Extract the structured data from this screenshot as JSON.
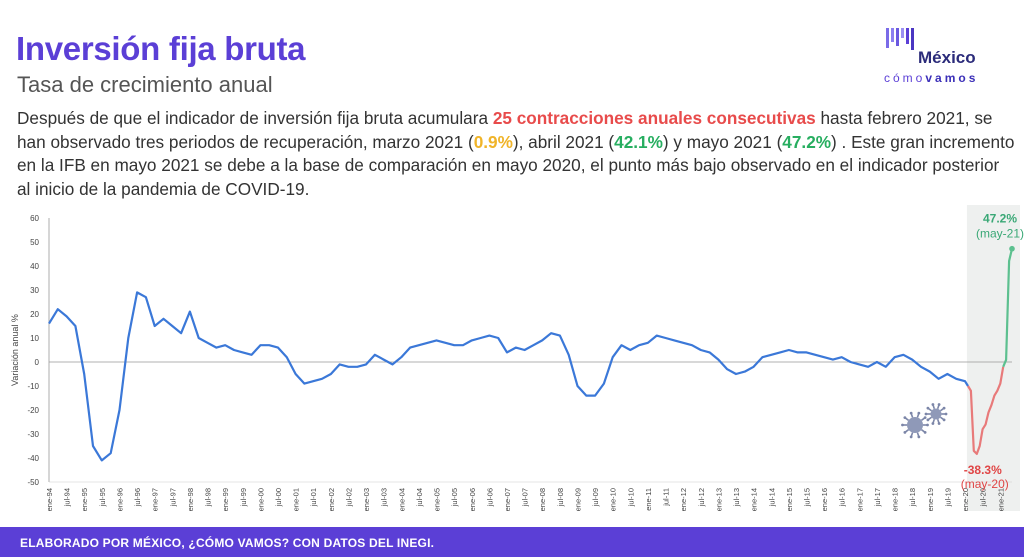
{
  "header": {
    "title": "Inversión fija bruta",
    "subtitle": "Tasa de crecimiento anual"
  },
  "description": {
    "part1": "Después de que el indicador de inversión fija bruta acumulara ",
    "highlight_contractions": "25 contracciones anuales consecutivas",
    "part2": " hasta febrero 2021, se han observado tres periodos de recuperación, marzo 2021 (",
    "val_march": "0.9%",
    "part3": "), abril 2021 (",
    "val_april": "42.1%",
    "part4": ") y mayo 2021 (",
    "val_may": "47.2%",
    "part5": ") . Este gran incremento en la IFB en mayo 2021 se debe a la base de comparación en mayo 2020, el punto más bajo observado en el indicador posterior al inicio de la pandemia de COVID-19."
  },
  "logo": {
    "name": "México",
    "tagline_light": "cómo",
    "tagline_bold": "vamos"
  },
  "footer": {
    "text": "ELABORADO POR MÉXICO, ¿CÓMO VAMOS? CON DATOS DEL INEGI."
  },
  "colors": {
    "title": "#5b3fd6",
    "line_main": "#3b78d8",
    "line_drop": "#e87a7a",
    "line_recovery": "#5cc08f",
    "highlight_red": "#e84b4b",
    "highlight_yellow": "#f0b429",
    "highlight_green": "#27ae60",
    "footer_bg": "#5b3fd6"
  },
  "chart_data": {
    "type": "line",
    "ylabel": "Variación anual %",
    "ylim": [
      -50,
      60
    ],
    "yticks": [
      -50,
      -40,
      -30,
      -20,
      -10,
      0,
      10,
      20,
      30,
      40,
      50,
      60
    ],
    "grid": false,
    "x_start": "ene-94",
    "x_end": "may-21",
    "xtick_labels": [
      "ene-94",
      "jul-94",
      "ene-95",
      "jul-95",
      "ene-96",
      "jul-96",
      "ene-97",
      "jul-97",
      "ene-98",
      "jul-98",
      "ene-99",
      "jul-99",
      "ene-00",
      "jul-00",
      "ene-01",
      "jul-01",
      "ene-02",
      "jul-02",
      "ene-03",
      "jul-03",
      "ene-04",
      "jul-04",
      "ene-05",
      "jul-05",
      "ene-06",
      "jul-06",
      "ene-07",
      "jul-07",
      "ene-08",
      "jul-08",
      "ene-09",
      "jul-09",
      "ene-10",
      "jul-10",
      "ene-11",
      "jul-11",
      "ene-12",
      "jul-12",
      "ene-13",
      "jul-13",
      "ene-14",
      "jul-14",
      "ene-15",
      "jul-15",
      "ene-16",
      "jul-16",
      "ene-17",
      "jul-17",
      "ene-18",
      "jul-18",
      "ene-19",
      "jul-19",
      "ene-20",
      "jul-20",
      "ene-21"
    ],
    "series": [
      {
        "segment": "pre-pandemic",
        "points": [
          [
            "ene-94",
            16
          ],
          [
            "abr-94",
            22
          ],
          [
            "jul-94",
            19
          ],
          [
            "oct-94",
            15
          ],
          [
            "ene-95",
            -5
          ],
          [
            "abr-95",
            -35
          ],
          [
            "jul-95",
            -41
          ],
          [
            "oct-95",
            -38
          ],
          [
            "ene-96",
            -20
          ],
          [
            "abr-96",
            10
          ],
          [
            "jul-96",
            29
          ],
          [
            "oct-96",
            27
          ],
          [
            "ene-97",
            15
          ],
          [
            "abr-97",
            18
          ],
          [
            "jul-97",
            15
          ],
          [
            "oct-97",
            12
          ],
          [
            "ene-98",
            21
          ],
          [
            "abr-98",
            10
          ],
          [
            "jul-98",
            8
          ],
          [
            "oct-98",
            6
          ],
          [
            "ene-99",
            7
          ],
          [
            "abr-99",
            5
          ],
          [
            "jul-99",
            4
          ],
          [
            "oct-99",
            3
          ],
          [
            "ene-00",
            7
          ],
          [
            "abr-00",
            7
          ],
          [
            "jul-00",
            6
          ],
          [
            "oct-00",
            2
          ],
          [
            "ene-01",
            -5
          ],
          [
            "abr-01",
            -9
          ],
          [
            "jul-01",
            -8
          ],
          [
            "oct-01",
            -7
          ],
          [
            "ene-02",
            -5
          ],
          [
            "abr-02",
            -1
          ],
          [
            "jul-02",
            -2
          ],
          [
            "oct-02",
            -2
          ],
          [
            "ene-03",
            -1
          ],
          [
            "abr-03",
            3
          ],
          [
            "jul-03",
            1
          ],
          [
            "oct-03",
            -1
          ],
          [
            "ene-04",
            2
          ],
          [
            "abr-04",
            6
          ],
          [
            "jul-04",
            7
          ],
          [
            "oct-04",
            8
          ],
          [
            "ene-05",
            9
          ],
          [
            "abr-05",
            8
          ],
          [
            "jul-05",
            7
          ],
          [
            "oct-05",
            7
          ],
          [
            "ene-06",
            9
          ],
          [
            "abr-06",
            10
          ],
          [
            "jul-06",
            11
          ],
          [
            "oct-06",
            10
          ],
          [
            "ene-07",
            4
          ],
          [
            "abr-07",
            6
          ],
          [
            "jul-07",
            5
          ],
          [
            "oct-07",
            7
          ],
          [
            "ene-08",
            9
          ],
          [
            "abr-08",
            12
          ],
          [
            "jul-08",
            11
          ],
          [
            "oct-08",
            3
          ],
          [
            "ene-09",
            -10
          ],
          [
            "abr-09",
            -14
          ],
          [
            "jul-09",
            -14
          ],
          [
            "oct-09",
            -9
          ],
          [
            "ene-10",
            2
          ],
          [
            "abr-10",
            7
          ],
          [
            "jul-10",
            5
          ],
          [
            "oct-10",
            7
          ],
          [
            "ene-11",
            8
          ],
          [
            "abr-11",
            11
          ],
          [
            "jul-11",
            10
          ],
          [
            "oct-11",
            9
          ],
          [
            "ene-12",
            8
          ],
          [
            "abr-12",
            7
          ],
          [
            "jul-12",
            5
          ],
          [
            "oct-12",
            4
          ],
          [
            "ene-13",
            1
          ],
          [
            "abr-13",
            -3
          ],
          [
            "jul-13",
            -5
          ],
          [
            "oct-13",
            -4
          ],
          [
            "ene-14",
            -2
          ],
          [
            "abr-14",
            2
          ],
          [
            "jul-14",
            3
          ],
          [
            "oct-14",
            4
          ],
          [
            "ene-15",
            5
          ],
          [
            "abr-15",
            4
          ],
          [
            "jul-15",
            4
          ],
          [
            "oct-15",
            3
          ],
          [
            "ene-16",
            2
          ],
          [
            "abr-16",
            1
          ],
          [
            "jul-16",
            2
          ],
          [
            "oct-16",
            0
          ],
          [
            "ene-17",
            -1
          ],
          [
            "abr-17",
            -2
          ],
          [
            "jul-17",
            0
          ],
          [
            "oct-17",
            -2
          ],
          [
            "ene-18",
            2
          ],
          [
            "abr-18",
            3
          ],
          [
            "jul-18",
            1
          ],
          [
            "oct-18",
            -2
          ],
          [
            "ene-19",
            -4
          ],
          [
            "abr-19",
            -7
          ],
          [
            "jul-19",
            -5
          ],
          [
            "oct-19",
            -7
          ],
          [
            "ene-20",
            -8
          ],
          [
            "feb-20",
            -10
          ]
        ]
      },
      {
        "segment": "pandemic-drop",
        "points": [
          [
            "feb-20",
            -10
          ],
          [
            "mar-20",
            -12
          ],
          [
            "abr-20",
            -37
          ],
          [
            "may-20",
            -38.3
          ],
          [
            "jun-20",
            -35
          ],
          [
            "jul-20",
            -28
          ],
          [
            "ago-20",
            -26
          ],
          [
            "sep-20",
            -21
          ],
          [
            "oct-20",
            -18
          ],
          [
            "nov-20",
            -14
          ],
          [
            "dic-20",
            -12
          ],
          [
            "ene-21",
            -9
          ],
          [
            "feb-21",
            -2
          ]
        ]
      },
      {
        "segment": "recovery",
        "points": [
          [
            "feb-21",
            -2
          ],
          [
            "mar-21",
            0.9
          ],
          [
            "abr-21",
            42.1
          ],
          [
            "may-21",
            47.2
          ]
        ]
      }
    ],
    "annotations": [
      {
        "value": "47.2%",
        "label": "(may-21)",
        "x": "may-21",
        "y": 47.2
      },
      {
        "value": "-38.3%",
        "label": "(may-20)",
        "x": "may-20",
        "y": -38.3
      }
    ],
    "shaded_period": {
      "from": "feb-20",
      "to": "may-21"
    }
  }
}
